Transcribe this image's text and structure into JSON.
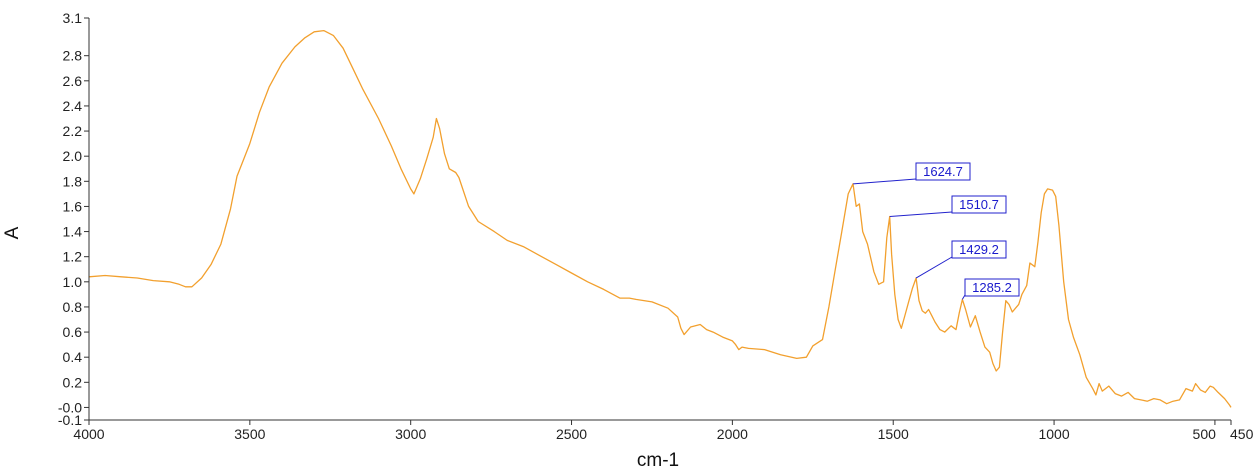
{
  "chart_data": {
    "type": "line",
    "xlabel": "cm-1",
    "ylabel": "A",
    "xlim": [
      4000,
      450
    ],
    "ylim": [
      -0.1,
      3.1
    ],
    "x_reversed": true,
    "grid": false,
    "x_ticks": [
      {
        "value": 4000,
        "label": "4000"
      },
      {
        "value": 3500,
        "label": "3500"
      },
      {
        "value": 3000,
        "label": "3000"
      },
      {
        "value": 2500,
        "label": "2500"
      },
      {
        "value": 2000,
        "label": "2000"
      },
      {
        "value": 1500,
        "label": "1500"
      },
      {
        "value": 1000,
        "label": "1000"
      },
      {
        "value": 500,
        "label": "500"
      },
      {
        "value": 450,
        "label": "450"
      }
    ],
    "y_ticks": [
      {
        "value": -0.1,
        "label": "-0.1"
      },
      {
        "value": 0.0,
        "label": "-0.0"
      },
      {
        "value": 0.2,
        "label": "0.2"
      },
      {
        "value": 0.4,
        "label": "0.4"
      },
      {
        "value": 0.6,
        "label": "0.6"
      },
      {
        "value": 0.8,
        "label": "0.8"
      },
      {
        "value": 1.0,
        "label": "1.0"
      },
      {
        "value": 1.2,
        "label": "1.2"
      },
      {
        "value": 1.4,
        "label": "1.4"
      },
      {
        "value": 1.6,
        "label": "1.6"
      },
      {
        "value": 1.8,
        "label": "1.8"
      },
      {
        "value": 2.0,
        "label": "2.0"
      },
      {
        "value": 2.2,
        "label": "2.2"
      },
      {
        "value": 2.4,
        "label": "2.4"
      },
      {
        "value": 2.6,
        "label": "2.6"
      },
      {
        "value": 2.8,
        "label": "2.8"
      },
      {
        "value": 3.1,
        "label": "3.1"
      }
    ],
    "series": [
      {
        "color": "#f2a02e",
        "points": [
          [
            4000,
            1.04
          ],
          [
            3950,
            1.05
          ],
          [
            3900,
            1.04
          ],
          [
            3850,
            1.03
          ],
          [
            3800,
            1.01
          ],
          [
            3750,
            1.0
          ],
          [
            3720,
            0.98
          ],
          [
            3700,
            0.96
          ],
          [
            3680,
            0.96
          ],
          [
            3650,
            1.03
          ],
          [
            3620,
            1.14
          ],
          [
            3590,
            1.3
          ],
          [
            3560,
            1.58
          ],
          [
            3540,
            1.84
          ],
          [
            3520,
            1.97
          ],
          [
            3500,
            2.1
          ],
          [
            3470,
            2.35
          ],
          [
            3440,
            2.55
          ],
          [
            3400,
            2.74
          ],
          [
            3360,
            2.87
          ],
          [
            3330,
            2.94
          ],
          [
            3300,
            2.99
          ],
          [
            3270,
            3.0
          ],
          [
            3240,
            2.96
          ],
          [
            3210,
            2.86
          ],
          [
            3180,
            2.7
          ],
          [
            3150,
            2.54
          ],
          [
            3100,
            2.3
          ],
          [
            3060,
            2.08
          ],
          [
            3030,
            1.9
          ],
          [
            3000,
            1.74
          ],
          [
            2990,
            1.7
          ],
          [
            2970,
            1.82
          ],
          [
            2950,
            1.98
          ],
          [
            2930,
            2.15
          ],
          [
            2920,
            2.3
          ],
          [
            2910,
            2.22
          ],
          [
            2895,
            2.02
          ],
          [
            2880,
            1.9
          ],
          [
            2860,
            1.87
          ],
          [
            2850,
            1.83
          ],
          [
            2820,
            1.6
          ],
          [
            2790,
            1.48
          ],
          [
            2740,
            1.4
          ],
          [
            2700,
            1.33
          ],
          [
            2650,
            1.28
          ],
          [
            2600,
            1.21
          ],
          [
            2550,
            1.14
          ],
          [
            2500,
            1.07
          ],
          [
            2450,
            1.0
          ],
          [
            2400,
            0.94
          ],
          [
            2350,
            0.87
          ],
          [
            2320,
            0.87
          ],
          [
            2300,
            0.86
          ],
          [
            2250,
            0.84
          ],
          [
            2200,
            0.79
          ],
          [
            2170,
            0.72
          ],
          [
            2160,
            0.63
          ],
          [
            2150,
            0.58
          ],
          [
            2130,
            0.64
          ],
          [
            2100,
            0.66
          ],
          [
            2080,
            0.62
          ],
          [
            2060,
            0.6
          ],
          [
            2030,
            0.56
          ],
          [
            2000,
            0.53
          ],
          [
            1990,
            0.5
          ],
          [
            1980,
            0.46
          ],
          [
            1970,
            0.48
          ],
          [
            1950,
            0.47
          ],
          [
            1900,
            0.46
          ],
          [
            1850,
            0.42
          ],
          [
            1800,
            0.39
          ],
          [
            1770,
            0.4
          ],
          [
            1750,
            0.49
          ],
          [
            1720,
            0.54
          ],
          [
            1700,
            0.8
          ],
          [
            1680,
            1.1
          ],
          [
            1660,
            1.4
          ],
          [
            1640,
            1.7
          ],
          [
            1625,
            1.78
          ],
          [
            1615,
            1.6
          ],
          [
            1605,
            1.62
          ],
          [
            1595,
            1.4
          ],
          [
            1580,
            1.3
          ],
          [
            1560,
            1.08
          ],
          [
            1545,
            0.98
          ],
          [
            1530,
            1.0
          ],
          [
            1520,
            1.35
          ],
          [
            1511,
            1.52
          ],
          [
            1505,
            1.22
          ],
          [
            1495,
            0.9
          ],
          [
            1485,
            0.7
          ],
          [
            1475,
            0.63
          ],
          [
            1465,
            0.72
          ],
          [
            1450,
            0.86
          ],
          [
            1440,
            0.95
          ],
          [
            1429,
            1.03
          ],
          [
            1420,
            0.85
          ],
          [
            1410,
            0.77
          ],
          [
            1400,
            0.75
          ],
          [
            1390,
            0.78
          ],
          [
            1380,
            0.73
          ],
          [
            1370,
            0.68
          ],
          [
            1355,
            0.62
          ],
          [
            1340,
            0.6
          ],
          [
            1320,
            0.65
          ],
          [
            1305,
            0.62
          ],
          [
            1295,
            0.75
          ],
          [
            1285,
            0.86
          ],
          [
            1275,
            0.78
          ],
          [
            1260,
            0.64
          ],
          [
            1245,
            0.73
          ],
          [
            1230,
            0.6
          ],
          [
            1215,
            0.48
          ],
          [
            1200,
            0.44
          ],
          [
            1190,
            0.35
          ],
          [
            1180,
            0.29
          ],
          [
            1170,
            0.32
          ],
          [
            1160,
            0.6
          ],
          [
            1150,
            0.85
          ],
          [
            1140,
            0.82
          ],
          [
            1130,
            0.76
          ],
          [
            1120,
            0.79
          ],
          [
            1110,
            0.82
          ],
          [
            1100,
            0.9
          ],
          [
            1085,
            0.97
          ],
          [
            1075,
            1.15
          ],
          [
            1060,
            1.12
          ],
          [
            1050,
            1.32
          ],
          [
            1040,
            1.55
          ],
          [
            1030,
            1.7
          ],
          [
            1020,
            1.74
          ],
          [
            1005,
            1.73
          ],
          [
            995,
            1.68
          ],
          [
            985,
            1.45
          ],
          [
            970,
            1.0
          ],
          [
            955,
            0.7
          ],
          [
            940,
            0.56
          ],
          [
            920,
            0.42
          ],
          [
            900,
            0.24
          ],
          [
            880,
            0.15
          ],
          [
            870,
            0.1
          ],
          [
            860,
            0.19
          ],
          [
            850,
            0.13
          ],
          [
            830,
            0.17
          ],
          [
            810,
            0.11
          ],
          [
            790,
            0.09
          ],
          [
            770,
            0.12
          ],
          [
            750,
            0.07
          ],
          [
            730,
            0.06
          ],
          [
            710,
            0.05
          ],
          [
            690,
            0.07
          ],
          [
            670,
            0.06
          ],
          [
            650,
            0.03
          ],
          [
            630,
            0.05
          ],
          [
            610,
            0.06
          ],
          [
            590,
            0.15
          ],
          [
            570,
            0.13
          ],
          [
            560,
            0.19
          ],
          [
            545,
            0.14
          ],
          [
            530,
            0.12
          ],
          [
            515,
            0.17
          ],
          [
            505,
            0.16
          ],
          [
            490,
            0.12
          ],
          [
            470,
            0.07
          ],
          [
            455,
            0.02
          ],
          [
            450,
            0.0
          ]
        ]
      }
    ],
    "annotations": [
      {
        "label": "1624.7",
        "x": 1624.7,
        "y": 1.78
      },
      {
        "label": "1510.7",
        "x": 1510.7,
        "y": 1.52
      },
      {
        "label": "1429.2",
        "x": 1429.2,
        "y": 1.03
      },
      {
        "label": "1285.2",
        "x": 1285.2,
        "y": 0.86
      }
    ]
  }
}
